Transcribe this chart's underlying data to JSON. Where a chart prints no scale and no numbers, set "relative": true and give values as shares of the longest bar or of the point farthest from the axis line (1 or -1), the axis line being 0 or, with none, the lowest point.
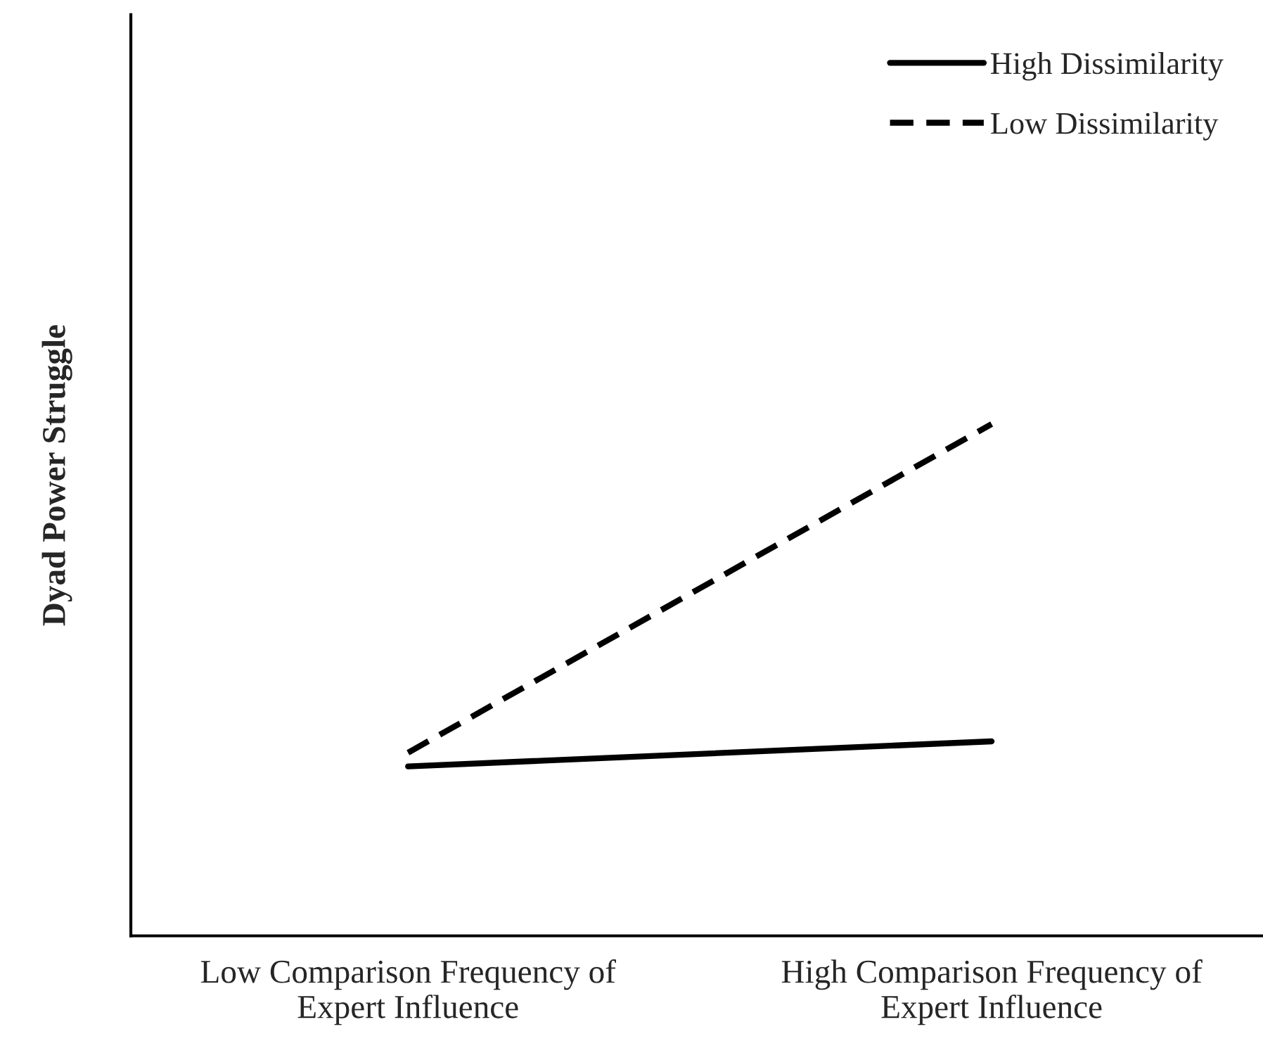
{
  "chart_data": {
    "type": "line",
    "ylabel": "Dyad Power Struggle",
    "categories": [
      "Low Comparison Frequency of\nExpert Influence",
      "High Comparison Frequency of\nExpert Influence"
    ],
    "relative": true,
    "legend": "top right",
    "grid": false,
    "marker": "none",
    "series": [
      {
        "name": "High Dissimilarity",
        "color": "#000000",
        "line_style": "solid",
        "values": [
          0.331,
          0.38
        ]
      },
      {
        "name": "Low Dissimilarity",
        "color": "#000000",
        "line_style": "dashed",
        "values": [
          0.358,
          1.0
        ]
      }
    ]
  }
}
